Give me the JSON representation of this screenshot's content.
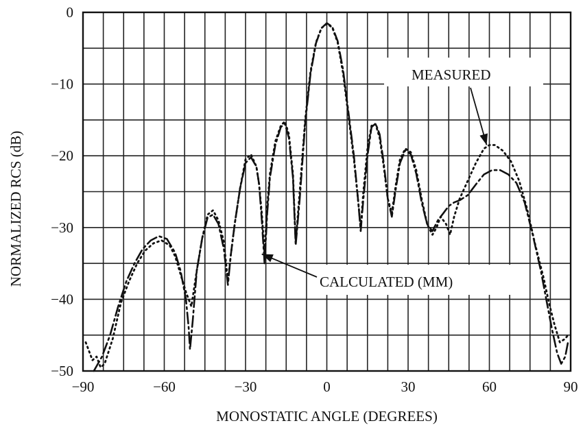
{
  "chart_data": {
    "type": "line",
    "title": "",
    "xlabel": "MONOSTATIC ANGLE (DEGREES)",
    "ylabel": "NORMALIZED RCS (dB)",
    "xlim": [
      -90,
      90
    ],
    "ylim": [
      -50,
      0
    ],
    "xticks": [
      -90,
      -60,
      -30,
      0,
      30,
      60,
      90
    ],
    "xtick_labels": [
      "−90",
      "−60",
      "−30",
      "0",
      "30",
      "60",
      "90"
    ],
    "yticks": [
      0,
      -10,
      -20,
      -30,
      -40,
      -50
    ],
    "ytick_labels": [
      "0",
      "−10",
      "−20",
      "−30",
      "−40",
      "−50"
    ],
    "grid": true,
    "grid_step_x_deg": 7.5,
    "grid_step_y_db": 5,
    "annotations": [
      {
        "text": "MEASURED",
        "points_to": {
          "x": 59,
          "y": -18.5
        }
      },
      {
        "text": "CALCULATED (MM)",
        "points_to": {
          "x": -24,
          "y": -33.7
        }
      }
    ],
    "series": [
      {
        "name": "CALCULATED (MM)",
        "style": "dash-dot",
        "points": [
          [
            -86,
            -50
          ],
          [
            -83,
            -48
          ],
          [
            -80,
            -45
          ],
          [
            -77,
            -41
          ],
          [
            -74,
            -37.5
          ],
          [
            -71,
            -35
          ],
          [
            -68,
            -33
          ],
          [
            -65,
            -31.8
          ],
          [
            -62,
            -31.2
          ],
          [
            -59,
            -31.6
          ],
          [
            -56,
            -33.5
          ],
          [
            -54,
            -36
          ],
          [
            -52,
            -40
          ],
          [
            -51,
            -44
          ],
          [
            -50.5,
            -47
          ],
          [
            -49.5,
            -43
          ],
          [
            -48,
            -36
          ],
          [
            -46,
            -31.5
          ],
          [
            -44,
            -28.6
          ],
          [
            -42,
            -28.2
          ],
          [
            -40,
            -29.5
          ],
          [
            -38,
            -33
          ],
          [
            -36.5,
            -38
          ],
          [
            -35.5,
            -34
          ],
          [
            -34,
            -29.5
          ],
          [
            -32,
            -24.5
          ],
          [
            -30,
            -21
          ],
          [
            -28,
            -20.2
          ],
          [
            -26,
            -21.5
          ],
          [
            -25,
            -24
          ],
          [
            -24,
            -29
          ],
          [
            -23,
            -35
          ],
          [
            -22,
            -28
          ],
          [
            -21,
            -23
          ],
          [
            -19,
            -18.5
          ],
          [
            -17,
            -16
          ],
          [
            -15.5,
            -15.5
          ],
          [
            -14,
            -17.5
          ],
          [
            -12.5,
            -23
          ],
          [
            -11.5,
            -32.5
          ],
          [
            -10,
            -26
          ],
          [
            -8,
            -15.5
          ],
          [
            -6,
            -8.5
          ],
          [
            -4,
            -4.3
          ],
          [
            -2,
            -2.2
          ],
          [
            0,
            -1.5
          ],
          [
            2,
            -2
          ],
          [
            4,
            -4
          ],
          [
            6,
            -8
          ],
          [
            8,
            -14
          ],
          [
            10,
            -20
          ],
          [
            11.5,
            -26
          ],
          [
            12.5,
            -30.5
          ],
          [
            13.5,
            -26
          ],
          [
            15,
            -20
          ],
          [
            16.5,
            -16
          ],
          [
            18,
            -15.5
          ],
          [
            19.5,
            -17
          ],
          [
            21,
            -21
          ],
          [
            22.5,
            -26
          ],
          [
            24,
            -28.5
          ],
          [
            25.5,
            -24.5
          ],
          [
            27,
            -21
          ],
          [
            29,
            -19.2
          ],
          [
            31,
            -19.8
          ],
          [
            33,
            -22.5
          ],
          [
            35,
            -26.5
          ],
          [
            37,
            -29.5
          ],
          [
            39,
            -30.5
          ],
          [
            41,
            -29
          ],
          [
            43,
            -28
          ],
          [
            45,
            -27
          ],
          [
            47,
            -26.5
          ],
          [
            49,
            -26.2
          ],
          [
            52,
            -25.5
          ],
          [
            55,
            -24
          ],
          [
            58,
            -22.6
          ],
          [
            61,
            -22
          ],
          [
            64,
            -22
          ],
          [
            67,
            -22.6
          ],
          [
            70,
            -23.8
          ],
          [
            73,
            -26.5
          ],
          [
            76,
            -31
          ],
          [
            79,
            -36
          ],
          [
            81,
            -40
          ],
          [
            83,
            -44
          ],
          [
            85,
            -47.5
          ],
          [
            86.5,
            -49
          ],
          [
            88,
            -48
          ],
          [
            89,
            -46
          ]
        ]
      },
      {
        "name": "MEASURED",
        "style": "dotted",
        "points": [
          [
            -89,
            -46
          ],
          [
            -88,
            -47
          ],
          [
            -86.5,
            -48.5
          ],
          [
            -85,
            -48
          ],
          [
            -83.5,
            -49.5
          ],
          [
            -82,
            -49
          ],
          [
            -79,
            -45.5
          ],
          [
            -76,
            -40.5
          ],
          [
            -73,
            -37.5
          ],
          [
            -70,
            -35
          ],
          [
            -67,
            -33.2
          ],
          [
            -64,
            -32.2
          ],
          [
            -61,
            -31.8
          ],
          [
            -58,
            -32.5
          ],
          [
            -56,
            -34
          ],
          [
            -54,
            -36.5
          ],
          [
            -52,
            -39
          ],
          [
            -50,
            -41
          ],
          [
            -48,
            -36
          ],
          [
            -46,
            -31.5
          ],
          [
            -44,
            -28.2
          ],
          [
            -42,
            -27.6
          ],
          [
            -40,
            -29
          ],
          [
            -38,
            -32
          ],
          [
            -36.5,
            -37.5
          ],
          [
            -35.5,
            -34
          ],
          [
            -34,
            -29.5
          ],
          [
            -32,
            -24.5
          ],
          [
            -30,
            -20.5
          ],
          [
            -28,
            -19.8
          ],
          [
            -26,
            -21.5
          ],
          [
            -25,
            -24
          ],
          [
            -24,
            -28
          ],
          [
            -23,
            -33.5
          ],
          [
            -22,
            -27
          ],
          [
            -21,
            -22.5
          ],
          [
            -19,
            -18
          ],
          [
            -17,
            -15.8
          ],
          [
            -15.5,
            -15.2
          ],
          [
            -14,
            -17
          ],
          [
            -12.5,
            -22.5
          ],
          [
            -11.5,
            -32
          ],
          [
            -10,
            -25
          ],
          [
            -8,
            -15
          ],
          [
            -6,
            -8.2
          ],
          [
            -4,
            -4.2
          ],
          [
            -2,
            -2.2
          ],
          [
            0,
            -1.6
          ],
          [
            2,
            -2.1
          ],
          [
            4,
            -4.2
          ],
          [
            6,
            -8.5
          ],
          [
            8,
            -14.5
          ],
          [
            10,
            -20.5
          ],
          [
            11.5,
            -26
          ],
          [
            12.5,
            -30
          ],
          [
            13.5,
            -25
          ],
          [
            15,
            -19
          ],
          [
            16.5,
            -15.8
          ],
          [
            18,
            -15.6
          ],
          [
            19.5,
            -17.5
          ],
          [
            21,
            -21.5
          ],
          [
            22.5,
            -26
          ],
          [
            24,
            -28
          ],
          [
            25.5,
            -24
          ],
          [
            27,
            -20.5
          ],
          [
            29,
            -19
          ],
          [
            31,
            -19.5
          ],
          [
            33,
            -22
          ],
          [
            35,
            -26
          ],
          [
            37,
            -29.5
          ],
          [
            39,
            -31
          ],
          [
            40.5,
            -30
          ],
          [
            42,
            -28.5
          ],
          [
            44,
            -29.5
          ],
          [
            45.5,
            -31
          ],
          [
            47,
            -28.5
          ],
          [
            49,
            -26
          ],
          [
            52,
            -23.5
          ],
          [
            55,
            -21
          ],
          [
            58,
            -19
          ],
          [
            60,
            -18.5
          ],
          [
            62,
            -18.5
          ],
          [
            65,
            -19.3
          ],
          [
            68,
            -20.8
          ],
          [
            71,
            -23.5
          ],
          [
            74,
            -27.5
          ],
          [
            77,
            -32.5
          ],
          [
            80,
            -37
          ],
          [
            82,
            -40.5
          ],
          [
            84,
            -43.5
          ],
          [
            86,
            -46
          ],
          [
            88,
            -45.5
          ],
          [
            89,
            -45
          ]
        ]
      }
    ]
  }
}
